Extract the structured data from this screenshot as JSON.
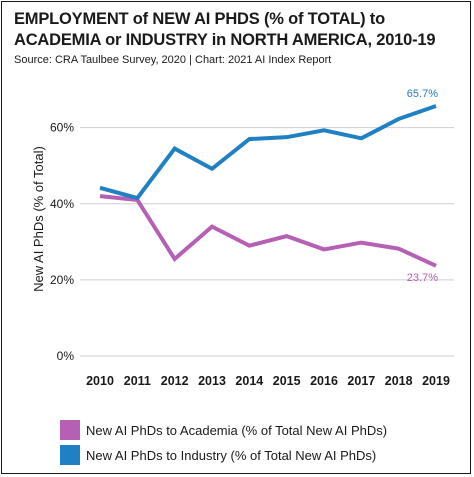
{
  "title": "EMPLOYMENT of NEW AI PHDS (% of TOTAL) to ACADEMIA or INDUSTRY in NORTH AMERICA, 2010-19",
  "subtitle": "Source: CRA Taulbee Survey, 2020 | Chart: 2021 AI Index Report",
  "chart_data": {
    "type": "line",
    "title": "EMPLOYMENT of NEW AI PHDS (% of TOTAL) to ACADEMIA or INDUSTRY in NORTH AMERICA, 2010-19",
    "subtitle": "Source: CRA Taulbee Survey, 2020 | Chart: 2021 AI Index Report",
    "xlabel": "",
    "ylabel": "New AI PhDs (% of Total)",
    "x": [
      "2010",
      "2011",
      "2012",
      "2013",
      "2014",
      "2015",
      "2016",
      "2017",
      "2018",
      "2019"
    ],
    "y_ticks": [
      "0%",
      "20%",
      "40%",
      "60%"
    ],
    "ylim": [
      0,
      72
    ],
    "grid": true,
    "legend_position": "bottom",
    "series": [
      {
        "name": "New AI PhDs to Academia (% of Total New AI PhDs)",
        "color": "#b55fb5",
        "values": [
          42.0,
          41.0,
          25.5,
          34.0,
          29.0,
          31.5,
          28.0,
          29.8,
          28.2,
          23.7
        ],
        "end_label": "23.7%"
      },
      {
        "name": "New AI PhDs to Industry (% of Total New AI PhDs)",
        "color": "#1f80c4",
        "values": [
          44.2,
          41.5,
          54.5,
          49.2,
          57.0,
          57.5,
          59.3,
          57.2,
          62.3,
          65.7
        ],
        "end_label": "65.7%"
      }
    ]
  }
}
